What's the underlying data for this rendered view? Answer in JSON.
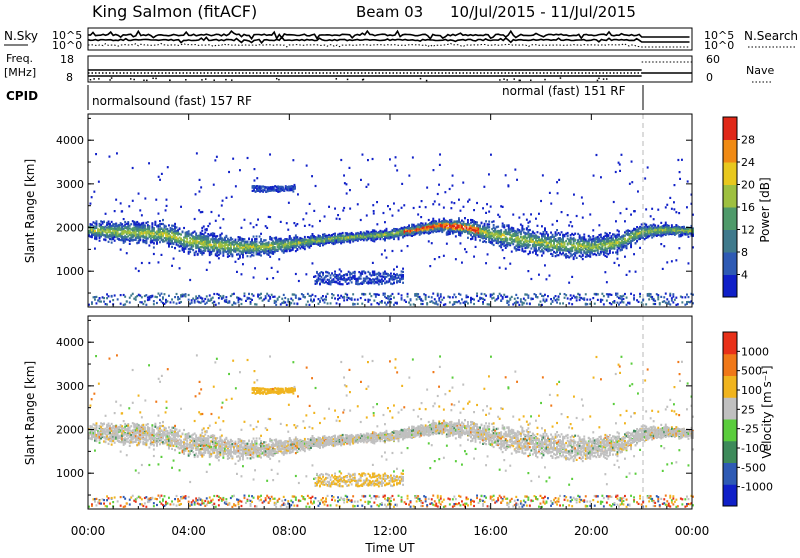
{
  "header": {
    "station": "King Salmon (fitACF)",
    "beam": "Beam 03",
    "dates": "10/Jul/2015 - 11/Jul/2015"
  },
  "summary": {
    "nsky_label": "N.Sky",
    "nsearch_label": "N.Search",
    "nsky_ticks": [
      "10^5",
      "10^0"
    ],
    "nsearch_ticks": [
      "10^5",
      "10^0"
    ],
    "freq_label": "Freq.",
    "freq_unit": "[MHz]",
    "freq_ticks": [
      "18",
      "8"
    ],
    "nave_label": "Nave",
    "nave_ticks": [
      "60",
      "0"
    ],
    "cpid_label": "CPID",
    "cpid_segments": [
      {
        "label": "normalsound (fast) 157 RF",
        "start_hour": 0,
        "end_hour": 22
      },
      {
        "label": "normal (fast) 151 RF",
        "start_hour": 22,
        "end_hour": 24
      }
    ]
  },
  "chart_data": [
    {
      "type": "heatmap",
      "name": "Power",
      "ylabel": "Slant Range [km]",
      "ylim": [
        180,
        4600
      ],
      "yticks": [
        "1000",
        "2000",
        "3000",
        "4000"
      ],
      "xlabel": "Time UT",
      "xticks": [
        "00:00",
        "04:00",
        "08:00",
        "12:00",
        "16:00",
        "20:00",
        "00:00"
      ],
      "xlim_hours": [
        0,
        24
      ],
      "colorbar_label": "Power [dB]",
      "colorbar_ticks": [
        "4",
        "8",
        "12",
        "16",
        "20",
        "24",
        "28"
      ],
      "colorbar_range": [
        0,
        30
      ],
      "main_band_center_km": [
        [
          0,
          1950
        ],
        [
          1,
          1900
        ],
        [
          2,
          1880
        ],
        [
          3,
          1850
        ],
        [
          4,
          1700
        ],
        [
          5,
          1600
        ],
        [
          6,
          1550
        ],
        [
          7,
          1560
        ],
        [
          8,
          1620
        ],
        [
          9,
          1700
        ],
        [
          10,
          1760
        ],
        [
          11,
          1800
        ],
        [
          12,
          1850
        ],
        [
          13,
          1950
        ],
        [
          14,
          2050
        ],
        [
          15,
          2000
        ],
        [
          16,
          1850
        ],
        [
          17,
          1750
        ],
        [
          18,
          1650
        ],
        [
          19,
          1600
        ],
        [
          20,
          1550
        ],
        [
          21,
          1650
        ],
        [
          22,
          1900
        ],
        [
          23,
          1950
        ],
        [
          24,
          1920
        ]
      ],
      "secondary_echoes": [
        {
          "start_hour": 9,
          "end_hour": 12.5,
          "range_km": [
            700,
            1000
          ]
        },
        {
          "start_hour": 6.5,
          "end_hour": 8.2,
          "range_km": [
            2820,
            2950
          ]
        }
      ]
    },
    {
      "type": "heatmap",
      "name": "Velocity",
      "ylabel": "Slant Range [km]",
      "ylim": [
        180,
        4600
      ],
      "yticks": [
        "1000",
        "2000",
        "3000",
        "4000"
      ],
      "xlabel": "Time UT",
      "xticks": [
        "00:00",
        "04:00",
        "08:00",
        "12:00",
        "16:00",
        "20:00",
        "00:00"
      ],
      "xlim_hours": [
        0,
        24
      ],
      "colorbar_label": "Velocity [m s⁻¹]",
      "colorbar_ticks": [
        "1000",
        "500",
        "100",
        "25",
        "-25",
        "-100",
        "-500",
        "-1000"
      ]
    }
  ],
  "colors": {
    "power_scale": [
      "#1020c8",
      "#2e5ab4",
      "#3f7a8c",
      "#4f9a6a",
      "#9ec040",
      "#e8c81e",
      "#f08a14",
      "#e02818"
    ],
    "velocity_scale": [
      "#1020c8",
      "#2e5ab4",
      "#3d8a5a",
      "#5acd3c",
      "#c0c0c0",
      "#f0b41e",
      "#f07818",
      "#e83018"
    ]
  }
}
